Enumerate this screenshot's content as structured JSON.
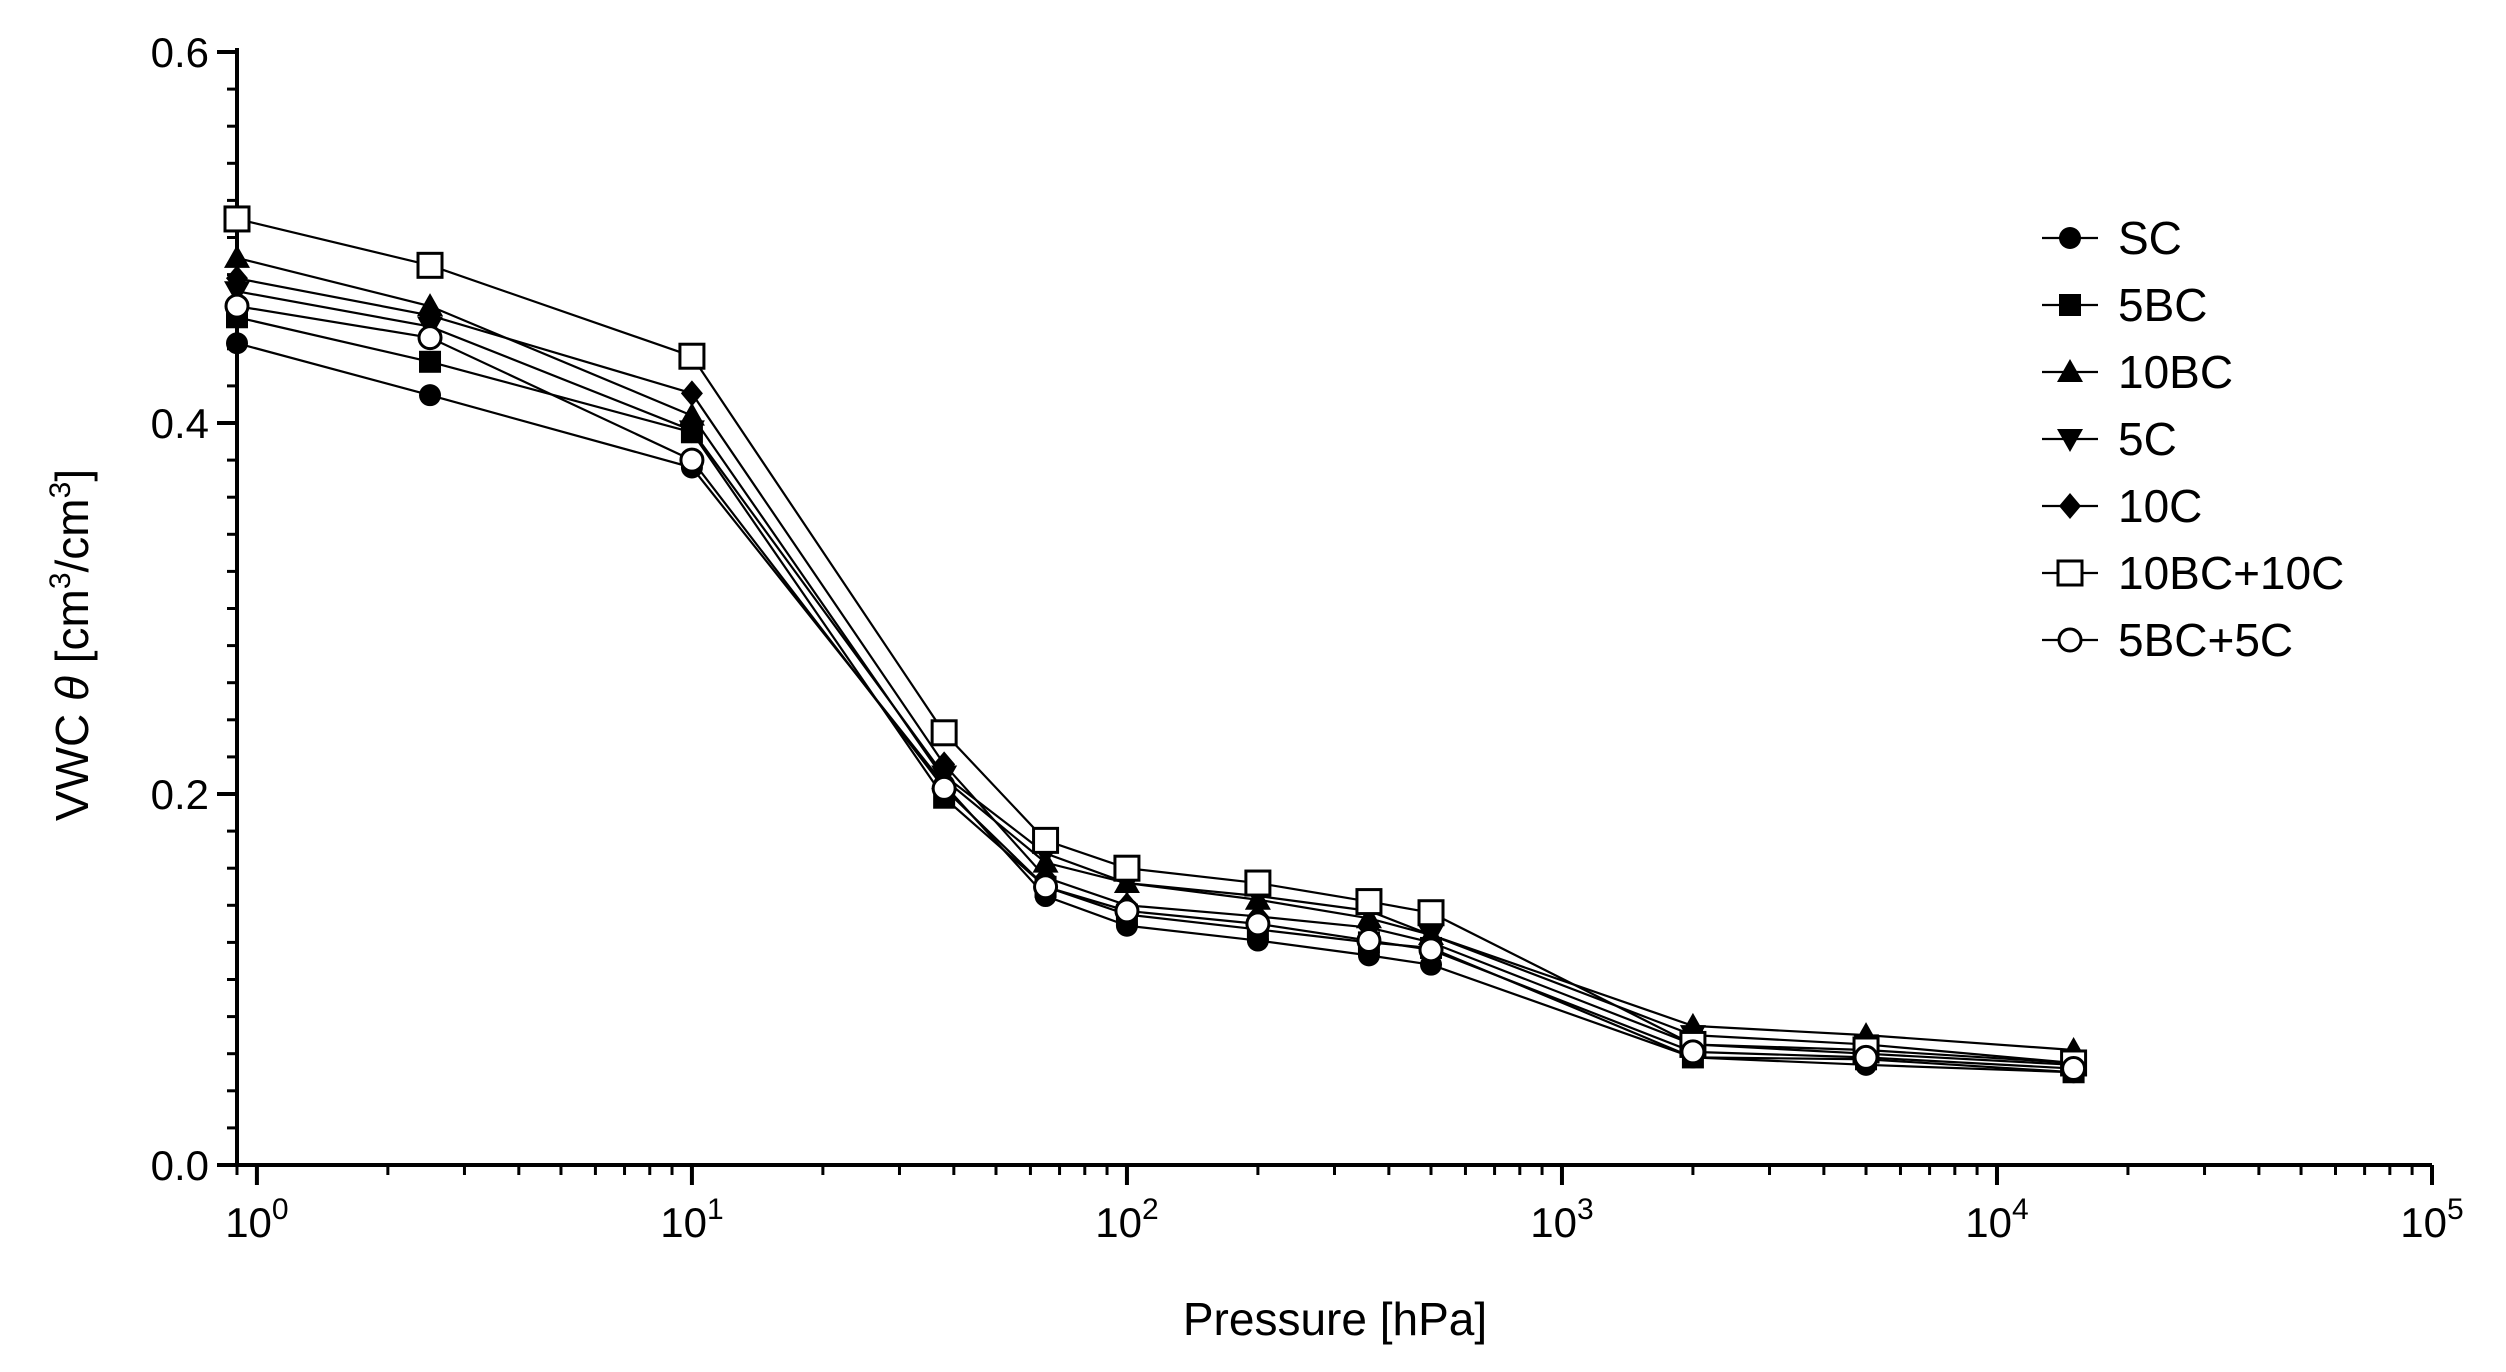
{
  "chart_data": {
    "type": "line",
    "title": "",
    "xlabel": "Pressure [hPa]",
    "ylabel": {
      "main": "VWC ",
      "theta": "θ",
      "unit_open": " [cm",
      "sup1": "3",
      "unit_mid": "/cm",
      "sup2": "3",
      "unit_close": "]"
    },
    "xscale": "log",
    "xlim": [
      0.9,
      100000
    ],
    "ylim": [
      0.0,
      0.6
    ],
    "x_ticks": [
      {
        "value": 1,
        "base": "10",
        "exp": "0"
      },
      {
        "value": 10,
        "base": "10",
        "exp": "1"
      },
      {
        "value": 100,
        "base": "10",
        "exp": "2"
      },
      {
        "value": 1000,
        "base": "10",
        "exp": "3"
      },
      {
        "value": 10000,
        "base": "10",
        "exp": "4"
      },
      {
        "value": 100000,
        "base": "10",
        "exp": "5"
      }
    ],
    "y_ticks": [
      {
        "value": 0.0,
        "label": "0.0"
      },
      {
        "value": 0.2,
        "label": "0.2"
      },
      {
        "value": 0.4,
        "label": "0.4"
      },
      {
        "value": 0.6,
        "label": "0.6"
      }
    ],
    "y_minor_step": 0.02,
    "legend_position": "top-right",
    "x": [
      0.9,
      2.5,
      10,
      38,
      65,
      100,
      200,
      360,
      500,
      2000,
      5000,
      15000
    ],
    "series": [
      {
        "name": "SC",
        "marker": "circle-filled",
        "values": [
          0.443,
          0.415,
          0.376,
          0.205,
          0.145,
          0.129,
          0.121,
          0.113,
          0.108,
          0.058,
          0.054,
          0.05
        ]
      },
      {
        "name": "5BC",
        "marker": "square-filled",
        "values": [
          0.457,
          0.433,
          0.395,
          0.198,
          0.15,
          0.135,
          0.127,
          0.12,
          0.117,
          0.058,
          0.057,
          0.05
        ]
      },
      {
        "name": "10BC",
        "marker": "triangle-up",
        "values": [
          0.489,
          0.463,
          0.404,
          0.208,
          0.163,
          0.152,
          0.143,
          0.133,
          0.124,
          0.075,
          0.07,
          0.062
        ]
      },
      {
        "name": "5C",
        "marker": "triangle-down",
        "values": [
          0.471,
          0.452,
          0.396,
          0.21,
          0.168,
          0.152,
          0.145,
          0.137,
          0.124,
          0.07,
          0.065,
          0.055
        ]
      },
      {
        "name": "10C",
        "marker": "diamond-filled",
        "values": [
          0.478,
          0.458,
          0.416,
          0.216,
          0.155,
          0.14,
          0.134,
          0.128,
          0.12,
          0.065,
          0.06,
          0.054
        ]
      },
      {
        "name": "10BC+10C",
        "marker": "square-open",
        "values": [
          0.51,
          0.485,
          0.436,
          0.233,
          0.175,
          0.16,
          0.152,
          0.142,
          0.136,
          0.065,
          0.062,
          0.055
        ]
      },
      {
        "name": "5BC+5C",
        "marker": "circle-open",
        "values": [
          0.463,
          0.446,
          0.38,
          0.203,
          0.15,
          0.137,
          0.13,
          0.121,
          0.116,
          0.061,
          0.058,
          0.052
        ]
      }
    ]
  }
}
